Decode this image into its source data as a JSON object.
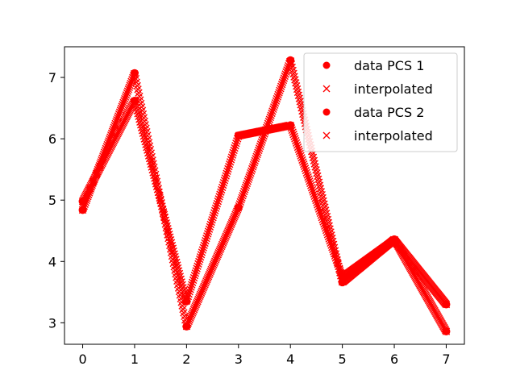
{
  "chart_data": {
    "type": "scatter",
    "x_ticks": [
      "0",
      "1",
      "2",
      "3",
      "4",
      "5",
      "6",
      "7"
    ],
    "y_ticks": [
      "3",
      "4",
      "5",
      "6",
      "7"
    ],
    "xlim": [
      -0.35,
      7.35
    ],
    "ylim": [
      2.65,
      7.5
    ],
    "grid": false,
    "legend_position": "top-right",
    "color": "#ff0000",
    "series": [
      {
        "name": "data PCS 1",
        "marker": "circle",
        "x": [
          0,
          1,
          2,
          3,
          4,
          5,
          6,
          7
        ],
        "y": [
          4.84,
          7.07,
          2.94,
          4.88,
          7.28,
          3.66,
          4.36,
          2.86
        ]
      },
      {
        "name": "interpolated",
        "marker": "x",
        "x_range": [
          0,
          7
        ],
        "interpolates": "data PCS 1"
      },
      {
        "name": "data PCS 2",
        "marker": "circle",
        "x": [
          0,
          1,
          2,
          3,
          4,
          5,
          6,
          7
        ],
        "y": [
          4.98,
          6.62,
          3.35,
          6.05,
          6.22,
          3.74,
          4.35,
          3.3
        ]
      },
      {
        "name": "interpolated",
        "marker": "x",
        "x_range": [
          0,
          7
        ],
        "interpolates": "data PCS 2"
      }
    ]
  }
}
